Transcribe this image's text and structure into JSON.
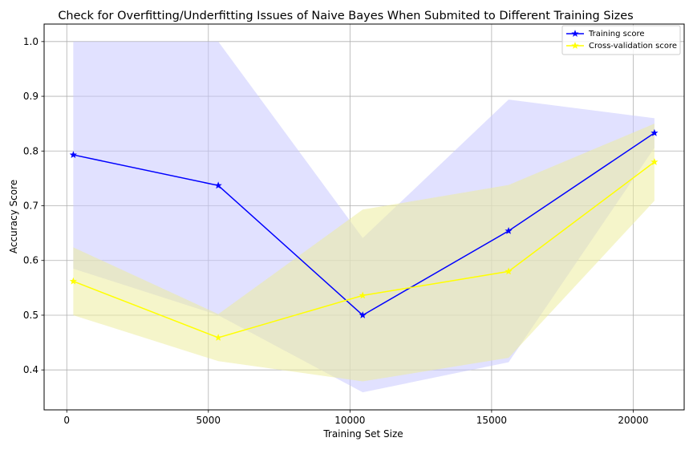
{
  "chart_data": {
    "type": "line",
    "title": "Check for Overfitting/Underfitting Issues of Naive Bayes When Submited to Different Training Sizes",
    "xlabel": "Training Set Size",
    "ylabel": "Accuracy Score",
    "xlim": [
      -800,
      21800
    ],
    "ylim": [
      0.327,
      1.032
    ],
    "xticks": [
      0,
      5000,
      10000,
      15000,
      20000
    ],
    "yticks": [
      0.4,
      0.5,
      0.6,
      0.7,
      0.8,
      0.9,
      1.0
    ],
    "xtick_labels": [
      "0",
      "5000",
      "10000",
      "15000",
      "20000"
    ],
    "ytick_labels": [
      "0.4",
      "0.5",
      "0.6",
      "0.7",
      "0.8",
      "0.9",
      "1.0"
    ],
    "grid": true,
    "legend_position": "top-right",
    "x": [
      230,
      5350,
      10450,
      15600,
      20750
    ],
    "series": [
      {
        "name": "Training score",
        "color": "#0000ff",
        "marker": "star",
        "values": [
          0.793,
          0.737,
          0.5,
          0.654,
          0.833
        ],
        "band_upper": [
          1.0,
          1.0,
          0.641,
          0.894,
          0.86
        ],
        "band_lower": [
          0.585,
          0.5,
          0.359,
          0.414,
          0.806
        ],
        "band_color": "#c9c9ff"
      },
      {
        "name": "Cross-validation score",
        "color": "#ffff00",
        "marker": "star",
        "values": [
          0.562,
          0.459,
          0.536,
          0.58,
          0.78
        ],
        "band_upper": [
          0.624,
          0.502,
          0.693,
          0.738,
          0.85
        ],
        "band_lower": [
          0.5,
          0.416,
          0.379,
          0.422,
          0.709
        ],
        "band_color": "#eded9e"
      }
    ]
  }
}
